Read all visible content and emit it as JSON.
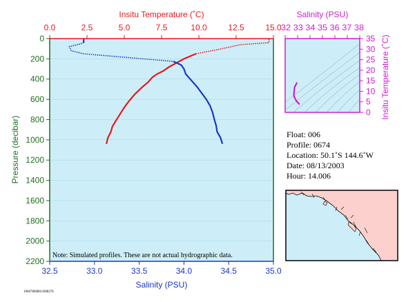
{
  "colors": {
    "temperature": "#e8161b",
    "salinity": "#1a36c8",
    "pressure_axis": "#1f6e1f",
    "ts_axes": "#d21ad2",
    "plot_background": "#cdeef8",
    "map_ocean": "#cdeef8",
    "map_land": "#fcd0cc"
  },
  "chart_data": [
    {
      "type": "line",
      "top_axis_label": "Insitu Temperature (˚C)",
      "bottom_axis_label": "Salinity (PSU)",
      "left_axis_label": "Pressure (decibar)",
      "temperature_range": [
        0,
        15
      ],
      "temperature_ticks": [
        "0.0",
        "2.5",
        "5.0",
        "7.5",
        "10.0",
        "12.5",
        "15.0"
      ],
      "salinity_range": [
        32.5,
        35.0
      ],
      "salinity_ticks": [
        "32.5",
        "33.0",
        "33.5",
        "34.0",
        "34.5",
        "35.0"
      ],
      "pressure_range": [
        0,
        2200
      ],
      "pressure_ticks": [
        "0",
        "200",
        "400",
        "600",
        "800",
        "1000",
        "1200",
        "1400",
        "1600",
        "1800",
        "2000",
        "2200"
      ],
      "series": [
        {
          "name": "Insitu Temperature (˚C)",
          "points": [
            [
              14.7,
              5
            ],
            [
              14.7,
              40
            ],
            [
              12.8,
              60
            ],
            [
              11.2,
              110
            ],
            [
              9.8,
              150
            ],
            [
              9.0,
              200
            ],
            [
              8.5,
              240
            ],
            [
              8.0,
              280
            ],
            [
              7.6,
              320
            ],
            [
              7.2,
              350
            ],
            [
              6.9,
              380
            ],
            [
              6.6,
              430
            ],
            [
              6.2,
              480
            ],
            [
              5.7,
              550
            ],
            [
              5.3,
              620
            ],
            [
              5.0,
              680
            ],
            [
              4.7,
              750
            ],
            [
              4.4,
              820
            ],
            [
              4.2,
              870
            ],
            [
              4.1,
              920
            ],
            [
              3.9,
              980
            ],
            [
              3.8,
              1040
            ]
          ]
        },
        {
          "name": "Salinity (PSU)",
          "points": [
            [
              32.88,
              5
            ],
            [
              32.88,
              40
            ],
            [
              32.85,
              50
            ],
            [
              32.72,
              80
            ],
            [
              32.74,
              120
            ],
            [
              32.88,
              150
            ],
            [
              33.55,
              200
            ],
            [
              33.88,
              225
            ],
            [
              33.97,
              260
            ],
            [
              34.0,
              300
            ],
            [
              34.02,
              350
            ],
            [
              34.09,
              420
            ],
            [
              34.15,
              480
            ],
            [
              34.2,
              540
            ],
            [
              34.25,
              600
            ],
            [
              34.29,
              660
            ],
            [
              34.32,
              730
            ],
            [
              34.34,
              800
            ],
            [
              34.36,
              860
            ],
            [
              34.37,
              920
            ],
            [
              34.41,
              980
            ],
            [
              34.43,
              1040
            ]
          ]
        }
      ]
    },
    {
      "type": "scatter",
      "title": "Salinity (PSU)",
      "y_axis_label": "Insitu Temperature (˚C)",
      "x_ticks": [
        "32",
        "33",
        "34",
        "35",
        "36",
        "37",
        "38"
      ],
      "x_tick_labels_printed": "32 33 34 35 36 37 38",
      "x_range": [
        32,
        38
      ],
      "y_ticks": [
        "0",
        "5",
        "10",
        "15",
        "20",
        "25",
        "30",
        "35"
      ],
      "y_range": [
        0,
        35
      ],
      "points": [
        [
          33.15,
          3.8
        ],
        [
          33.05,
          4.5
        ],
        [
          32.95,
          5.0
        ],
        [
          32.85,
          6.0
        ],
        [
          32.72,
          7.5
        ],
        [
          32.7,
          8.5
        ],
        [
          32.72,
          10.0
        ],
        [
          32.76,
          12.0
        ],
        [
          32.9,
          13.5
        ],
        [
          32.95,
          14.2
        ]
      ]
    }
  ],
  "float_info": {
    "float": "Float:  006",
    "profile": "Profile:  0674",
    "location": "Location:  50.1˚S  144.6˚W",
    "date": "Date:  08/13/2003",
    "hour": "Hour:  14.006"
  },
  "note": "Note: Simulated profiles.  These are not actual hydrographic data.",
  "footer_id": "1066786080.0388276"
}
